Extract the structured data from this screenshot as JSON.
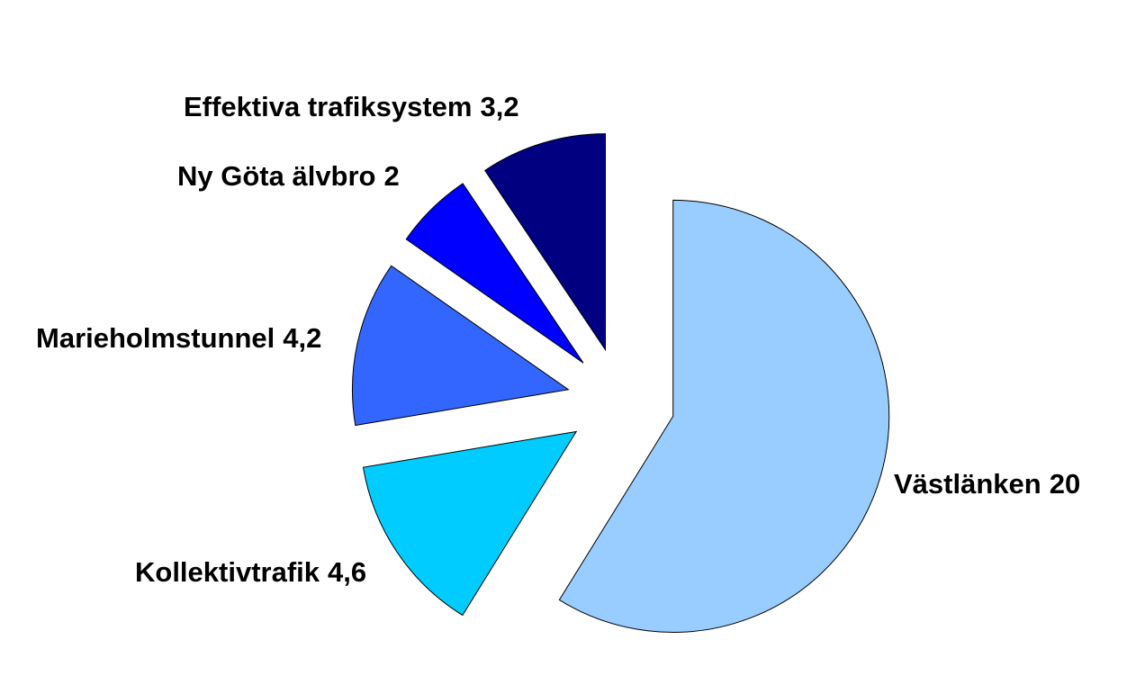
{
  "chart_data": {
    "type": "pie",
    "categories": [
      "Västlänken",
      "Kollektivtrafik",
      "Marieholmstunnel",
      "Ny Göta älvbro",
      "Effektiva trafiksystem"
    ],
    "values": [
      20,
      4.6,
      4.2,
      2,
      3.2
    ],
    "value_labels": [
      "20",
      "4,6",
      "4,2",
      "2",
      "3,2"
    ],
    "colors": [
      "#99ccff",
      "#00ccff",
      "#3366ff",
      "#0000ff",
      "#000080"
    ],
    "exploded": true
  }
}
